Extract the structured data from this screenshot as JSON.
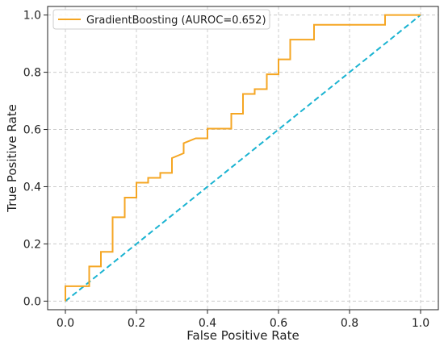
{
  "chart_data": {
    "type": "line",
    "xlabel": "False Positive Rate",
    "ylabel": "True Positive Rate",
    "xlim": [
      -0.05,
      1.05
    ],
    "ylim": [
      -0.03,
      1.03
    ],
    "xticks": [
      0.0,
      0.2,
      0.4,
      0.6,
      0.8,
      1.0
    ],
    "xtick_labels": [
      "0.0",
      "0.2",
      "0.4",
      "0.6",
      "0.8",
      "1.0"
    ],
    "yticks": [
      0.0,
      0.2,
      0.4,
      0.6,
      0.8,
      1.0
    ],
    "ytick_labels": [
      "0.0",
      "0.2",
      "0.4",
      "0.6",
      "0.8",
      "1.0"
    ],
    "grid": true,
    "legend_position": "top-left",
    "series": [
      {
        "name": "GradientBoosting (AUROC=0.652)",
        "color": "#f5a623",
        "style": "solid",
        "step": true,
        "x": [
          0.0,
          0.0,
          0.067,
          0.067,
          0.1,
          0.1,
          0.133,
          0.133,
          0.167,
          0.167,
          0.2,
          0.2,
          0.233,
          0.233,
          0.267,
          0.267,
          0.3,
          0.3,
          0.333,
          0.333,
          0.367,
          0.367,
          0.4,
          0.4,
          0.467,
          0.467,
          0.5,
          0.5,
          0.533,
          0.533,
          0.567,
          0.567,
          0.6,
          0.6,
          0.633,
          0.633,
          0.7,
          0.7,
          0.9,
          0.9,
          1.0
        ],
        "y": [
          0.0,
          0.052,
          0.052,
          0.121,
          0.121,
          0.172,
          0.172,
          0.293,
          0.293,
          0.362,
          0.362,
          0.414,
          0.414,
          0.431,
          0.431,
          0.448,
          0.448,
          0.5,
          0.517,
          0.552,
          0.569,
          0.569,
          0.569,
          0.603,
          0.603,
          0.655,
          0.655,
          0.724,
          0.724,
          0.741,
          0.741,
          0.793,
          0.793,
          0.845,
          0.845,
          0.914,
          0.914,
          0.966,
          0.966,
          1.0,
          1.0
        ]
      },
      {
        "name": "",
        "color": "#1ab3d1",
        "style": "dashed",
        "x": [
          0.0,
          1.0
        ],
        "y": [
          0.0,
          1.0
        ]
      }
    ]
  }
}
